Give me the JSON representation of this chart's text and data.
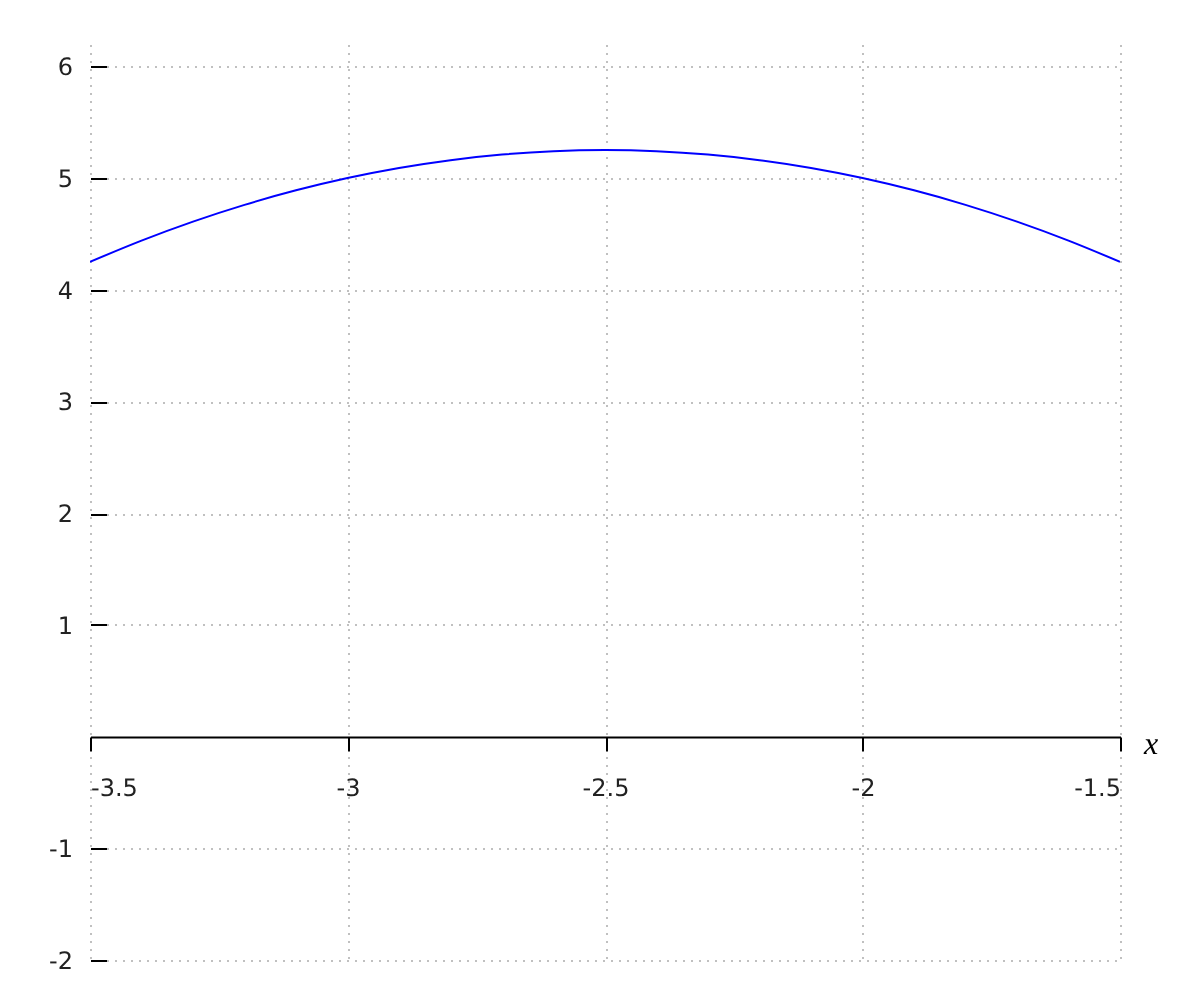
{
  "chart_data": {
    "type": "line",
    "xlabel": "x",
    "x": [
      -3.5,
      -3.4,
      -3.3,
      -3.2,
      -3.1,
      -3.0,
      -2.9,
      -2.8,
      -2.7,
      -2.6,
      -2.5,
      -2.4,
      -2.3,
      -2.2,
      -2.1,
      -2.0,
      -1.9,
      -1.8,
      -1.7,
      -1.6,
      -1.5
    ],
    "series": [
      {
        "color": "#0000ff",
        "values": [
          4.25,
          4.44,
          4.61,
          4.76,
          4.89,
          5.0,
          5.09,
          5.16,
          5.21,
          5.24,
          5.25,
          5.24,
          5.21,
          5.16,
          5.09,
          5.0,
          4.89,
          4.76,
          4.61,
          4.44,
          4.25
        ]
      }
    ],
    "xlim": [
      -3.5,
      -1.5
    ],
    "ylim": [
      -2,
      6.2
    ],
    "xticks": [
      -3.5,
      -3,
      -2.5,
      -2,
      -1.5
    ],
    "yticks": [
      -2,
      -1,
      1,
      2,
      3,
      4,
      5,
      6
    ],
    "grid": true,
    "line_style": "solid"
  }
}
